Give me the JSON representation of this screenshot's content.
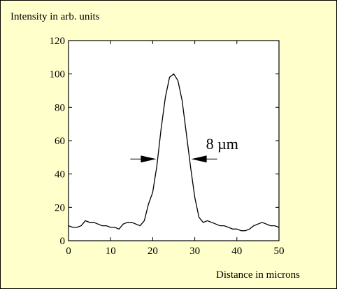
{
  "colors": {
    "background": "#ffffcc",
    "plot_background": "#ffffff",
    "line": "#000000"
  },
  "chart_data": {
    "type": "line",
    "ylabel": "Intensity in arb. units",
    "xlabel": "Distance in microns",
    "xlim": [
      0,
      50
    ],
    "ylim": [
      0,
      120
    ],
    "xticks": [
      0,
      10,
      20,
      30,
      40,
      50
    ],
    "yticks": [
      0,
      20,
      40,
      60,
      80,
      100,
      120
    ],
    "grid": false,
    "series": [
      {
        "x": [
          0,
          1,
          2,
          3,
          4,
          5,
          6,
          7,
          8,
          9,
          10,
          11,
          12,
          13,
          14,
          15,
          16,
          17,
          18,
          19,
          20,
          21,
          22,
          23,
          24,
          25,
          26,
          27,
          28,
          29,
          30,
          31,
          32,
          33,
          34,
          35,
          36,
          37,
          38,
          39,
          40,
          41,
          42,
          43,
          44,
          45,
          46,
          47,
          48,
          49,
          50
        ],
        "y": [
          9,
          8,
          8,
          9,
          12,
          11,
          11,
          10,
          9,
          9,
          8,
          8,
          7,
          10,
          11,
          11,
          10,
          9,
          12,
          22,
          29,
          45,
          67,
          86,
          98,
          100,
          96,
          84,
          64,
          44,
          26,
          14,
          11,
          12,
          11,
          10,
          9,
          9,
          8,
          7,
          7,
          6,
          6,
          7,
          9,
          10,
          11,
          10,
          9,
          9,
          8
        ]
      }
    ],
    "annotation": {
      "label": "8 µm",
      "left_arrow_at": 21,
      "right_arrow_at": 29,
      "y": 49
    }
  }
}
